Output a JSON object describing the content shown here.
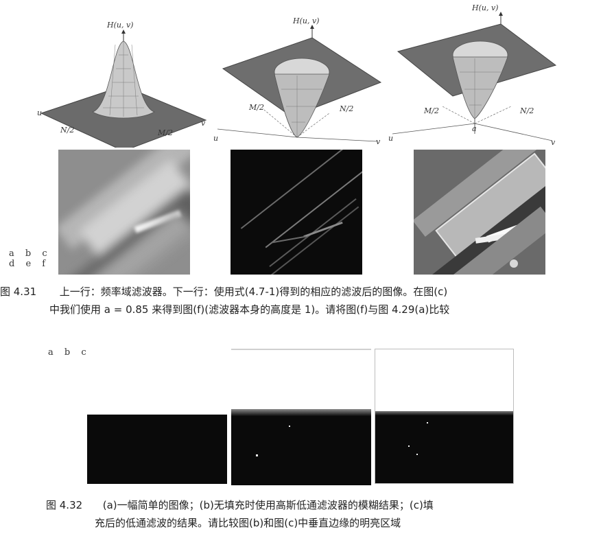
{
  "plots": {
    "a": {
      "vertical_label": "H(u, v)",
      "u_label": "u",
      "v_label": "v",
      "m_label": "M/2",
      "n_label": "N/2"
    },
    "b": {
      "vertical_label": "H(u, v)",
      "u_label": "u",
      "v_label": "v",
      "m_label": "M/2",
      "n_label": "N/2"
    },
    "c": {
      "vertical_label": "H(u, v)",
      "u_label": "u",
      "v_label": "v",
      "m_label": "M/2",
      "n_label": "N/2",
      "a_label": "a"
    }
  },
  "figure_431": {
    "panel_tags_row1": "a b c",
    "panel_tags_row2": "d e f",
    "caption_number": "图 4.31",
    "caption_line1": "上一行：频率域滤波器。下一行：使用式(4.7-1)得到的相应的滤波后的图像。在图(c)",
    "caption_line2": "中我们使用 a = 0.85 来得到图(f)(滤波器本身的高度是 1)。请将图(f)与图 4.29(a)比较"
  },
  "figure_432": {
    "panel_tags": "a b c",
    "caption_number": "图 4.32",
    "caption_line1": "(a)一幅简单的图像；(b)无填充时使用高斯低通滤波器的模糊结果；(c)填",
    "caption_line2": "充后的低通滤波的结果。请比较图(b)和图(c)中垂直边缘的明亮区域"
  }
}
